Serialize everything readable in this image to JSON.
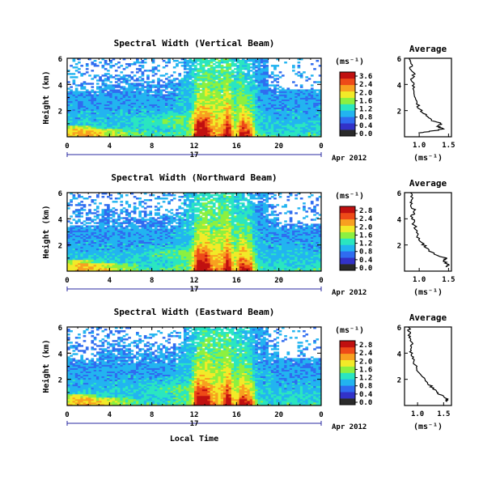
{
  "chart_data": [
    {
      "type": "heatmap",
      "title": "Spectral Width (Vertical Beam)",
      "ylabel": "Height (km)",
      "xlabel": "",
      "x_ticks": [
        "0",
        "4",
        "8",
        "12",
        "16",
        "20",
        "0"
      ],
      "y_ticks": [
        "6",
        "4",
        "2"
      ],
      "xlim": [
        0,
        24
      ],
      "ylim": [
        0,
        6
      ],
      "date_label": "17",
      "month_label": "Apr 2012",
      "colorbar": {
        "unit": "(ms⁻¹)",
        "ticks": [
          "3.6",
          "2.4",
          "2.0",
          "1.6",
          "1.2",
          "0.8",
          "0.4",
          "0.0"
        ],
        "colors": [
          "#2a2a2a",
          "#3232c8",
          "#2f6cf0",
          "#22b4f0",
          "#2ae6c0",
          "#8cf040",
          "#f2ea28",
          "#f8a020",
          "#ee4a18",
          "#c01010"
        ]
      },
      "profile": {
        "title": "Average",
        "xlabel": "(ms⁻¹)",
        "x_ticks": [
          "1.0",
          "1.5"
        ],
        "y_ticks": [
          "6",
          "4",
          "2"
        ],
        "xlim": [
          0.75,
          1.55
        ],
        "ylim": [
          0,
          6
        ],
        "points": [
          [
            1.0,
            0.3
          ],
          [
            1.25,
            0.45
          ],
          [
            1.4,
            0.6
          ],
          [
            1.32,
            0.8
          ],
          [
            1.38,
            1.0
          ],
          [
            1.2,
            1.3
          ],
          [
            1.12,
            1.7
          ],
          [
            1.0,
            2.1
          ],
          [
            0.97,
            2.6
          ],
          [
            0.92,
            3.2
          ],
          [
            0.9,
            3.8
          ],
          [
            0.88,
            4.3
          ],
          [
            0.9,
            4.8
          ],
          [
            0.86,
            5.3
          ],
          [
            0.85,
            5.8
          ],
          [
            0.84,
            6.0
          ]
        ]
      }
    },
    {
      "type": "heatmap",
      "title": "Spectral Width (Northward Beam)",
      "ylabel": "Height (km)",
      "xlabel": "",
      "x_ticks": [
        "0",
        "4",
        "8",
        "12",
        "16",
        "20",
        "0"
      ],
      "y_ticks": [
        "6",
        "4",
        "2"
      ],
      "xlim": [
        0,
        24
      ],
      "ylim": [
        0,
        6
      ],
      "date_label": "17",
      "month_label": "Apr 2012",
      "colorbar": {
        "unit": "(ms⁻¹)",
        "ticks": [
          "2.8",
          "2.4",
          "2.0",
          "1.6",
          "1.2",
          "0.8",
          "0.4",
          "0.0"
        ],
        "colors": [
          "#2a2a2a",
          "#3232c8",
          "#2f6cf0",
          "#22b4f0",
          "#2ae6c0",
          "#8cf040",
          "#f2ea28",
          "#f8a020",
          "#ee4a18",
          "#c01010"
        ]
      },
      "profile": {
        "title": "Average",
        "xlabel": "(ms⁻¹)",
        "x_ticks": [
          "1.0",
          "1.5"
        ],
        "y_ticks": [
          "6",
          "4",
          "2"
        ],
        "xlim": [
          0.75,
          1.55
        ],
        "ylim": [
          0,
          6
        ],
        "points": [
          [
            1.45,
            0.3
          ],
          [
            1.5,
            0.5
          ],
          [
            1.4,
            0.8
          ],
          [
            1.45,
            1.0
          ],
          [
            1.25,
            1.3
          ],
          [
            1.15,
            1.7
          ],
          [
            1.05,
            2.1
          ],
          [
            0.98,
            2.6
          ],
          [
            0.95,
            3.2
          ],
          [
            0.9,
            3.7
          ],
          [
            0.88,
            4.2
          ],
          [
            0.92,
            4.6
          ],
          [
            0.86,
            5.1
          ],
          [
            0.88,
            5.5
          ],
          [
            0.85,
            6.0
          ]
        ]
      }
    },
    {
      "type": "heatmap",
      "title": "Spectral Width (Eastward Beam)",
      "ylabel": "Height (km)",
      "xlabel": "Local Time",
      "x_ticks": [
        "0",
        "4",
        "8",
        "12",
        "16",
        "20",
        "0"
      ],
      "y_ticks": [
        "6",
        "4",
        "2"
      ],
      "xlim": [
        0,
        24
      ],
      "ylim": [
        0,
        6
      ],
      "date_label": "17",
      "month_label": "Apr 2012",
      "colorbar": {
        "unit": "(ms⁻¹)",
        "ticks": [
          "2.8",
          "2.4",
          "2.0",
          "1.6",
          "1.2",
          "0.8",
          "0.4",
          "0.0"
        ],
        "colors": [
          "#2a2a2a",
          "#3232c8",
          "#2f6cf0",
          "#22b4f0",
          "#2ae6c0",
          "#8cf040",
          "#f2ea28",
          "#f8a020",
          "#ee4a18",
          "#c01010"
        ]
      },
      "profile": {
        "title": "Average",
        "xlabel": "(ms⁻¹)",
        "x_ticks": [
          "1.0",
          "1.5"
        ],
        "y_ticks": [
          "6",
          "4",
          "2"
        ],
        "xlim": [
          0.75,
          1.65
        ],
        "ylim": [
          0,
          6
        ],
        "points": [
          [
            1.55,
            0.3
          ],
          [
            1.58,
            0.5
          ],
          [
            1.45,
            0.8
          ],
          [
            1.35,
            1.1
          ],
          [
            1.25,
            1.5
          ],
          [
            1.15,
            1.9
          ],
          [
            1.05,
            2.4
          ],
          [
            0.98,
            2.9
          ],
          [
            0.92,
            3.4
          ],
          [
            0.88,
            3.9
          ],
          [
            0.86,
            4.4
          ],
          [
            0.9,
            4.8
          ],
          [
            0.84,
            5.2
          ],
          [
            0.85,
            5.6
          ],
          [
            0.82,
            6.0
          ]
        ]
      }
    }
  ]
}
